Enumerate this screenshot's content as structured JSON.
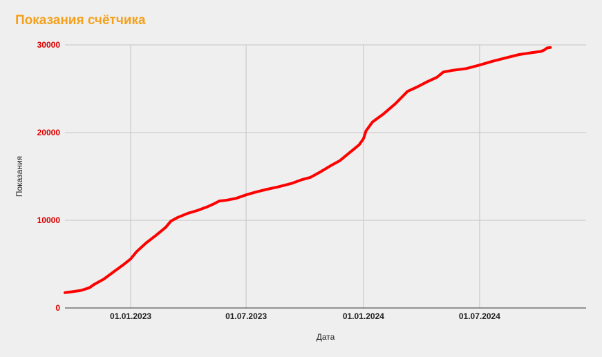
{
  "chart_data": {
    "type": "line",
    "title": "Показания счётчика",
    "xlabel": "Дата",
    "ylabel": "Показания",
    "ylim": [
      0,
      30000
    ],
    "xlim": [
      "2022-09-20",
      "2024-12-15"
    ],
    "y_ticks": [
      "0",
      "10000",
      "20000",
      "30000"
    ],
    "x_ticks": [
      {
        "date": "2023-01-01",
        "label": "01.01.2023"
      },
      {
        "date": "2023-07-01",
        "label": "01.07.2023"
      },
      {
        "date": "2024-01-01",
        "label": "01.01.2024"
      },
      {
        "date": "2024-07-01",
        "label": "01.07.2024"
      }
    ],
    "grid": true,
    "series": [
      {
        "color": "#ff0000",
        "points": [
          [
            "2022-09-20",
            1750
          ],
          [
            "2022-10-01",
            1850
          ],
          [
            "2022-10-15",
            2000
          ],
          [
            "2022-10-28",
            2300
          ],
          [
            "2022-11-05",
            2700
          ],
          [
            "2022-11-20",
            3300
          ],
          [
            "2022-12-05",
            4100
          ],
          [
            "2022-12-20",
            4900
          ],
          [
            "2023-01-01",
            5600
          ],
          [
            "2023-01-10",
            6400
          ],
          [
            "2023-01-25",
            7400
          ],
          [
            "2023-02-10",
            8300
          ],
          [
            "2023-02-25",
            9200
          ],
          [
            "2023-03-05",
            9900
          ],
          [
            "2023-03-15",
            10300
          ],
          [
            "2023-04-01",
            10800
          ],
          [
            "2023-04-15",
            11100
          ],
          [
            "2023-04-30",
            11500
          ],
          [
            "2023-05-12",
            11900
          ],
          [
            "2023-05-20",
            12200
          ],
          [
            "2023-06-01",
            12300
          ],
          [
            "2023-06-15",
            12500
          ],
          [
            "2023-07-01",
            12900
          ],
          [
            "2023-07-15",
            13200
          ],
          [
            "2023-08-01",
            13500
          ],
          [
            "2023-08-20",
            13800
          ],
          [
            "2023-09-10",
            14200
          ],
          [
            "2023-09-25",
            14600
          ],
          [
            "2023-10-10",
            14900
          ],
          [
            "2023-10-25",
            15500
          ],
          [
            "2023-11-10",
            16200
          ],
          [
            "2023-11-25",
            16800
          ],
          [
            "2023-12-10",
            17700
          ],
          [
            "2023-12-25",
            18600
          ],
          [
            "2024-01-01",
            19300
          ],
          [
            "2024-01-05",
            20200
          ],
          [
            "2024-01-15",
            21200
          ],
          [
            "2024-02-01",
            22100
          ],
          [
            "2024-02-20",
            23300
          ],
          [
            "2024-03-10",
            24700
          ],
          [
            "2024-03-25",
            25200
          ],
          [
            "2024-04-10",
            25800
          ],
          [
            "2024-04-25",
            26300
          ],
          [
            "2024-05-05",
            26900
          ],
          [
            "2024-05-20",
            27100
          ],
          [
            "2024-06-10",
            27300
          ],
          [
            "2024-07-01",
            27700
          ],
          [
            "2024-07-20",
            28100
          ],
          [
            "2024-08-10",
            28500
          ],
          [
            "2024-09-01",
            28900
          ],
          [
            "2024-09-20",
            29100
          ],
          [
            "2024-10-05",
            29250
          ],
          [
            "2024-10-10",
            29400
          ],
          [
            "2024-10-15",
            29650
          ],
          [
            "2024-10-20",
            29700
          ]
        ]
      }
    ]
  }
}
